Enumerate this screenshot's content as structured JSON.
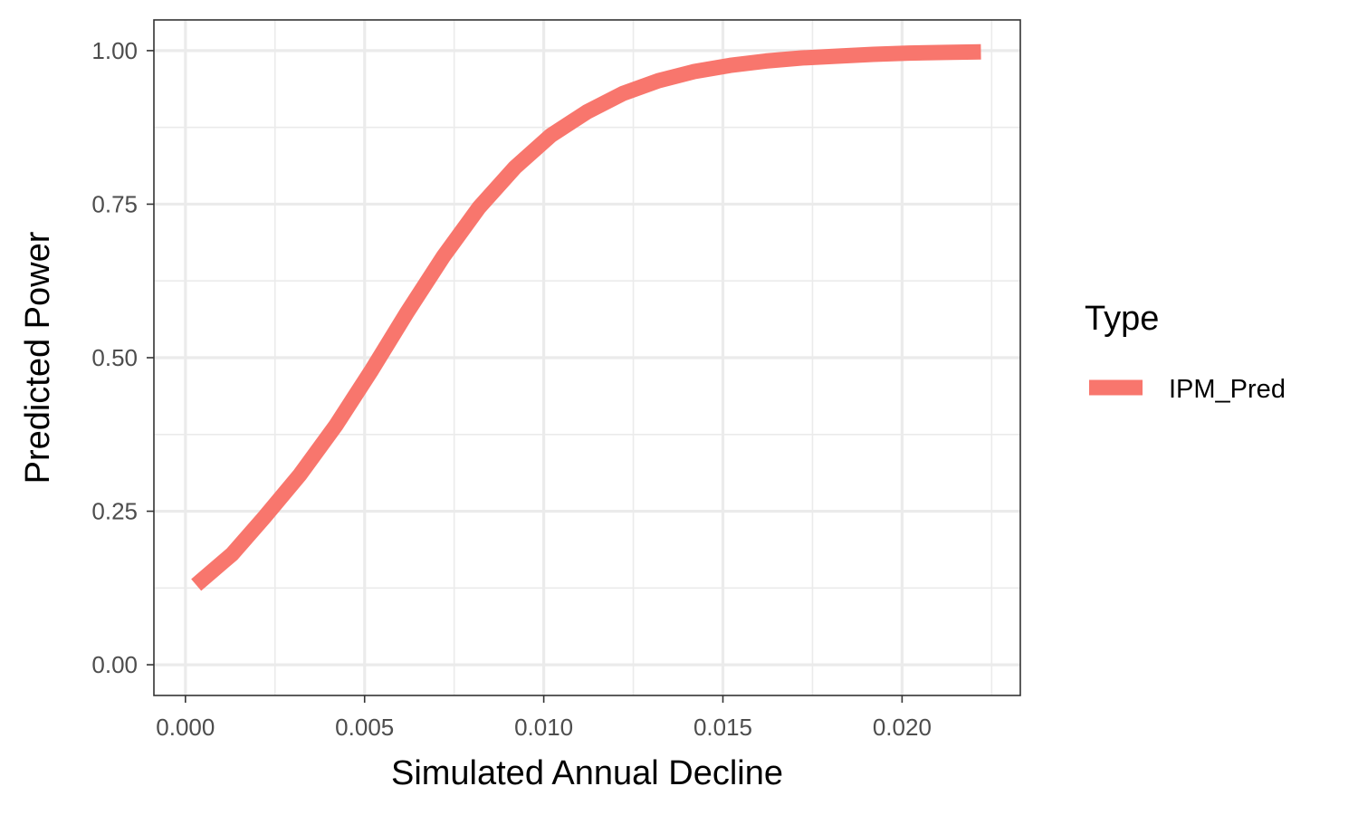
{
  "chart_data": {
    "type": "line",
    "title": "",
    "xlabel": "Simulated Annual Decline",
    "ylabel": "Predicted Power",
    "xlim": [
      -0.00088,
      0.0233
    ],
    "ylim": [
      -0.05,
      1.05
    ],
    "x_ticks": [
      0.0,
      0.005,
      0.01,
      0.015,
      0.02
    ],
    "x_tick_labels": [
      "0.000",
      "0.005",
      "0.010",
      "0.015",
      "0.020"
    ],
    "x_minor_ticks": [
      0.0025,
      0.0075,
      0.0125,
      0.0175,
      0.0225
    ],
    "y_ticks": [
      0.0,
      0.25,
      0.5,
      0.75,
      1.0
    ],
    "y_tick_labels": [
      "0.00",
      "0.25",
      "0.50",
      "0.75",
      "1.00"
    ],
    "y_minor_ticks": [
      0.125,
      0.375,
      0.625,
      0.875
    ],
    "grid": true,
    "legend": {
      "title": "Type",
      "position": "right"
    },
    "series": [
      {
        "name": "IPM_Pred",
        "color": "#F8766D",
        "x": [
          0.0003,
          0.0013,
          0.0022,
          0.0032,
          0.0042,
          0.0052,
          0.0062,
          0.0072,
          0.0082,
          0.0092,
          0.0102,
          0.0112,
          0.0122,
          0.0132,
          0.0142,
          0.0152,
          0.0162,
          0.0172,
          0.0182,
          0.0192,
          0.0202,
          0.0212,
          0.0222
        ],
        "y": [
          0.13,
          0.18,
          0.24,
          0.31,
          0.39,
          0.48,
          0.575,
          0.665,
          0.745,
          0.81,
          0.862,
          0.9,
          0.93,
          0.951,
          0.966,
          0.976,
          0.983,
          0.988,
          0.991,
          0.994,
          0.996,
          0.997,
          0.998
        ]
      }
    ]
  }
}
